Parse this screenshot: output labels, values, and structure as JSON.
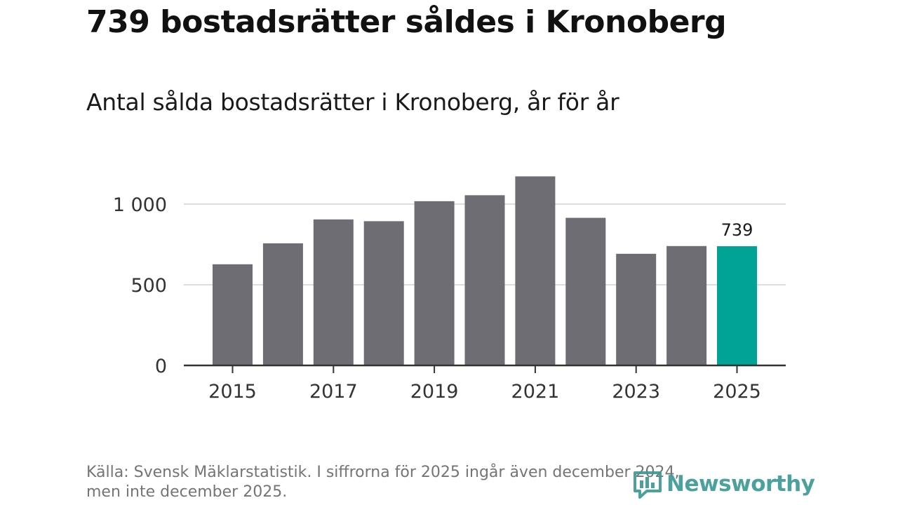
{
  "title": "739 bostadsrätter såldes i Kronoberg",
  "subtitle": "Antal sålda bostadsrätter i Kronoberg, år för år",
  "footer": {
    "line1": "Källa: Svensk Mäklarstatistik. I siffrorna för 2025 ingår även december 2024,",
    "line2": "men inte december 2025."
  },
  "logo": {
    "text": "Newsworthy",
    "icon": "newsworthy-logo-icon"
  },
  "colors": {
    "bar": "#6e6d73",
    "highlight": "#00a396",
    "axis": "#333333",
    "grid": "#dddddd"
  },
  "chart_data": {
    "type": "bar",
    "title": "Antal sålda bostadsrätter i Kronoberg, år för år",
    "xlabel": "",
    "ylabel": "",
    "categories": [
      "2015",
      "2016",
      "2017",
      "2018",
      "2019",
      "2020",
      "2021",
      "2022",
      "2023",
      "2024",
      "2025"
    ],
    "values": [
      627,
      757,
      905,
      894,
      1018,
      1055,
      1172,
      915,
      692,
      740,
      739
    ],
    "ylim": [
      0,
      1200
    ],
    "yticks": [
      0,
      500,
      1000
    ],
    "ytick_labels": [
      "0",
      "500",
      "1 000"
    ],
    "xticks": [
      "2015",
      "2017",
      "2019",
      "2021",
      "2023",
      "2025"
    ],
    "highlight_category": "2025",
    "data_labels": [
      {
        "category": "2025",
        "label": "739"
      }
    ],
    "grid": true
  }
}
